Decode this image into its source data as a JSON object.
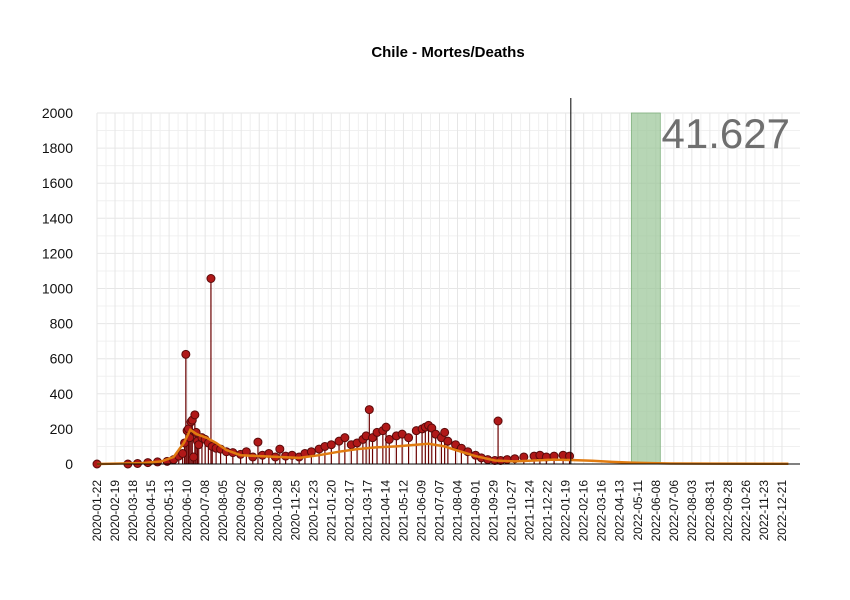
{
  "chart_data": {
    "type": "line",
    "title": "Chile - Mortes/Deaths",
    "xlabel": "",
    "ylabel": "",
    "ylim": [
      0,
      2000
    ],
    "yticks": [
      0,
      200,
      400,
      600,
      800,
      1000,
      1200,
      1400,
      1600,
      1800,
      2000
    ],
    "x_range": [
      "2020-01-22",
      "2023-01-18"
    ],
    "x_ticks": [
      "2020-01-22",
      "2020-02-19",
      "2020-03-18",
      "2020-04-15",
      "2020-05-13",
      "2020-06-10",
      "2020-07-08",
      "2020-08-05",
      "2020-09-02",
      "2020-09-30",
      "2020-10-28",
      "2020-11-25",
      "2020-12-23",
      "2021-01-20",
      "2021-02-17",
      "2021-03-17",
      "2021-04-14",
      "2021-05-12",
      "2021-06-09",
      "2021-07-07",
      "2021-08-04",
      "2021-09-01",
      "2021-09-29",
      "2021-10-27",
      "2021-11-24",
      "2021-12-22",
      "2022-01-19",
      "2022-02-16",
      "2022-03-16",
      "2022-04-13",
      "2022-05-11",
      "2022-06-08",
      "2022-07-06",
      "2022-08-03",
      "2022-08-31",
      "2022-09-28",
      "2022-10-26",
      "2022-11-23",
      "2022-12-21"
    ],
    "grid": true,
    "annotation": "41.627",
    "vline_date": "2022-01-27",
    "shaded_range": [
      "2022-05-01",
      "2022-06-15"
    ],
    "colors": {
      "points": "#b01818",
      "point_edge": "#5a0a0a",
      "stems": "#6b0000",
      "trend": "#e07b10",
      "shade": "#98c496",
      "grid": "#e6e6e6"
    },
    "series": [
      {
        "values": [
          [
            "2020-01-22",
            0
          ],
          [
            "2020-03-10",
            0
          ],
          [
            "2020-03-25",
            3
          ],
          [
            "2020-04-10",
            8
          ],
          [
            "2020-04-25",
            12
          ],
          [
            "2020-05-10",
            15
          ],
          [
            "2020-05-20",
            25
          ],
          [
            "2020-05-28",
            45
          ],
          [
            "2020-06-03",
            60
          ],
          [
            "2020-06-06",
            120
          ],
          [
            "2020-06-08",
            625
          ],
          [
            "2020-06-10",
            190
          ],
          [
            "2020-06-12",
            200
          ],
          [
            "2020-06-14",
            150
          ],
          [
            "2020-06-16",
            240
          ],
          [
            "2020-06-18",
            250
          ],
          [
            "2020-06-20",
            40
          ],
          [
            "2020-06-22",
            280
          ],
          [
            "2020-06-24",
            180
          ],
          [
            "2020-06-26",
            130
          ],
          [
            "2020-06-28",
            110
          ],
          [
            "2020-07-03",
            150
          ],
          [
            "2020-07-08",
            140
          ],
          [
            "2020-07-13",
            120
          ],
          [
            "2020-07-17",
            1057
          ],
          [
            "2020-07-19",
            100
          ],
          [
            "2020-07-25",
            90
          ],
          [
            "2020-08-01",
            85
          ],
          [
            "2020-08-10",
            70
          ],
          [
            "2020-08-20",
            65
          ],
          [
            "2020-09-01",
            55
          ],
          [
            "2020-09-10",
            70
          ],
          [
            "2020-09-20",
            40
          ],
          [
            "2020-09-28",
            125
          ],
          [
            "2020-10-05",
            50
          ],
          [
            "2020-10-15",
            60
          ],
          [
            "2020-10-25",
            40
          ],
          [
            "2020-11-01",
            85
          ],
          [
            "2020-11-10",
            45
          ],
          [
            "2020-11-20",
            50
          ],
          [
            "2020-12-01",
            40
          ],
          [
            "2020-12-10",
            60
          ],
          [
            "2020-12-20",
            70
          ],
          [
            "2021-01-01",
            85
          ],
          [
            "2021-01-10",
            100
          ],
          [
            "2021-01-20",
            110
          ],
          [
            "2021-02-01",
            130
          ],
          [
            "2021-02-10",
            150
          ],
          [
            "2021-02-20",
            110
          ],
          [
            "2021-03-01",
            120
          ],
          [
            "2021-03-10",
            140
          ],
          [
            "2021-03-15",
            160
          ],
          [
            "2021-03-20",
            310
          ],
          [
            "2021-03-25",
            150
          ],
          [
            "2021-04-01",
            180
          ],
          [
            "2021-04-10",
            190
          ],
          [
            "2021-04-15",
            210
          ],
          [
            "2021-04-20",
            140
          ],
          [
            "2021-05-01",
            160
          ],
          [
            "2021-05-10",
            170
          ],
          [
            "2021-05-20",
            150
          ],
          [
            "2021-06-01",
            190
          ],
          [
            "2021-06-10",
            200
          ],
          [
            "2021-06-15",
            210
          ],
          [
            "2021-06-20",
            220
          ],
          [
            "2021-06-25",
            205
          ],
          [
            "2021-07-01",
            170
          ],
          [
            "2021-07-10",
            150
          ],
          [
            "2021-07-15",
            180
          ],
          [
            "2021-07-20",
            130
          ],
          [
            "2021-08-01",
            110
          ],
          [
            "2021-08-10",
            90
          ],
          [
            "2021-08-20",
            70
          ],
          [
            "2021-09-01",
            50
          ],
          [
            "2021-09-10",
            35
          ],
          [
            "2021-09-20",
            25
          ],
          [
            "2021-10-01",
            20
          ],
          [
            "2021-10-06",
            245
          ],
          [
            "2021-10-10",
            20
          ],
          [
            "2021-10-20",
            25
          ],
          [
            "2021-11-01",
            30
          ],
          [
            "2021-11-15",
            40
          ],
          [
            "2021-12-01",
            45
          ],
          [
            "2021-12-10",
            50
          ],
          [
            "2021-12-20",
            40
          ],
          [
            "2022-01-01",
            45
          ],
          [
            "2022-01-15",
            50
          ],
          [
            "2022-01-25",
            45
          ]
        ]
      },
      {
        "name": "trend",
        "values": [
          [
            "2020-01-22",
            0
          ],
          [
            "2020-04-01",
            5
          ],
          [
            "2020-05-01",
            15
          ],
          [
            "2020-05-20",
            40
          ],
          [
            "2020-06-05",
            120
          ],
          [
            "2020-06-15",
            195
          ],
          [
            "2020-06-25",
            170
          ],
          [
            "2020-07-10",
            150
          ],
          [
            "2020-07-25",
            120
          ],
          [
            "2020-08-10",
            80
          ],
          [
            "2020-09-01",
            50
          ],
          [
            "2020-10-01",
            45
          ],
          [
            "2020-11-01",
            40
          ],
          [
            "2020-12-01",
            35
          ],
          [
            "2021-01-01",
            50
          ],
          [
            "2021-02-01",
            70
          ],
          [
            "2021-03-01",
            85
          ],
          [
            "2021-04-01",
            95
          ],
          [
            "2021-05-01",
            100
          ],
          [
            "2021-06-01",
            110
          ],
          [
            "2021-06-20",
            115
          ],
          [
            "2021-07-15",
            100
          ],
          [
            "2021-08-01",
            80
          ],
          [
            "2021-09-01",
            45
          ],
          [
            "2021-10-01",
            20
          ],
          [
            "2021-11-01",
            15
          ],
          [
            "2021-12-01",
            20
          ],
          [
            "2022-01-01",
            25
          ],
          [
            "2022-02-01",
            22
          ],
          [
            "2022-03-01",
            18
          ],
          [
            "2022-04-01",
            12
          ],
          [
            "2022-05-01",
            8
          ],
          [
            "2022-06-01",
            5
          ],
          [
            "2022-07-01",
            3
          ],
          [
            "2022-09-01",
            2
          ],
          [
            "2022-12-31",
            1
          ]
        ]
      }
    ]
  }
}
